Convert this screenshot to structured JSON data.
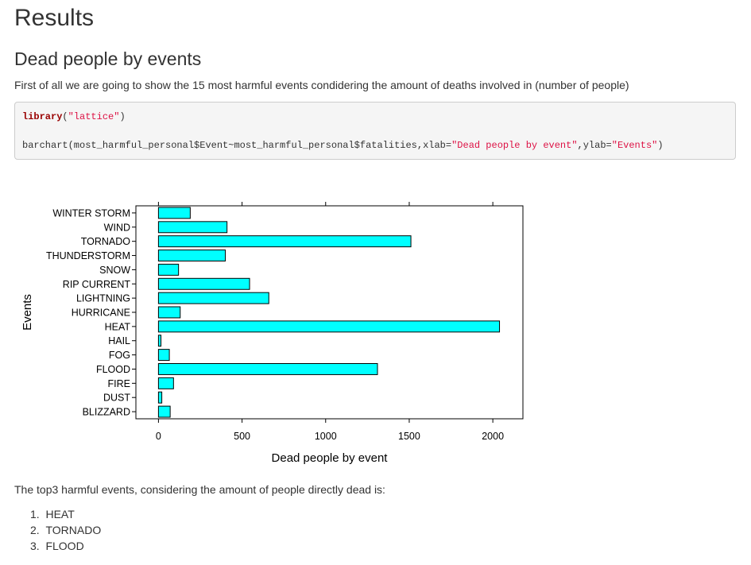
{
  "page": {
    "title": "Results",
    "section_title": "Dead people by events",
    "intro": "First of all we are going to show the 15 most harmful events condidering the amount of deaths involved in (number of people)",
    "code": {
      "line1_fn": "library",
      "line1_open": "(",
      "line1_arg": "\"lattice\"",
      "line1_close": ")",
      "line2_pre": "barchart(most_harmful_personal$Event~most_harmful_personal$fatalities,xlab=",
      "line2_str1": "\"Dead people by event\"",
      "line2_mid": ",ylab=",
      "line2_str2": "\"Events\"",
      "line2_post": ")"
    },
    "summary": "The top3 harmful events, considering the amount of people directly dead is:",
    "top3": [
      "1.  HEAT",
      "2.  TORNADO",
      "3.  FLOOD"
    ]
  },
  "colors": {
    "bar_fill": "#00FFFF",
    "bar_stroke": "#000000"
  },
  "chart_data": {
    "type": "bar",
    "orientation": "horizontal",
    "categories": [
      "WINTER STORM",
      "WIND",
      "TORNADO",
      "THUNDERSTORM",
      "SNOW",
      "RIP CURRENT",
      "LIGHTNING",
      "HURRICANE",
      "HEAT",
      "HAIL",
      "FOG",
      "FLOOD",
      "FIRE",
      "DUST",
      "BLIZZARD"
    ],
    "values": [
      190,
      410,
      1510,
      400,
      120,
      545,
      660,
      130,
      2040,
      15,
      65,
      1310,
      90,
      20,
      70
    ],
    "xlabel": "Dead people by event",
    "ylabel": "Events",
    "xlim": [
      -135,
      2180
    ],
    "xticks": [
      0,
      500,
      1000,
      1500,
      2000
    ],
    "grid": false,
    "legend": "none"
  }
}
